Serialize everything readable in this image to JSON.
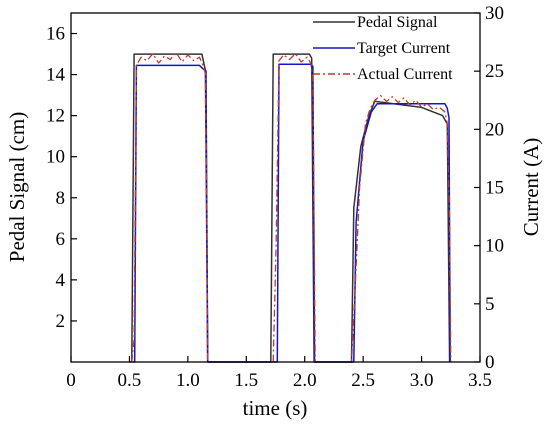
{
  "chart_data": {
    "type": "line",
    "xlabel": "time (s)",
    "ylabel": "Pedal Signal (cm)",
    "y2label": "Current (A)",
    "xlim": [
      0,
      3.5
    ],
    "ylim": [
      0,
      17
    ],
    "y2lim": [
      0,
      30
    ],
    "x_ticks": [
      "0",
      "0.5",
      "1.0",
      "1.5",
      "2.0",
      "2.5",
      "3.0",
      "3.5"
    ],
    "y_ticks": [
      "2",
      "4",
      "6",
      "8",
      "10",
      "12",
      "14",
      "16"
    ],
    "y2_ticks": [
      "0",
      "5",
      "10",
      "15",
      "20",
      "25",
      "30"
    ],
    "grid": false,
    "legend_position": "top-right",
    "series": [
      {
        "name": "Pedal Signal",
        "axis": "left",
        "color": "#333333",
        "style": "solid",
        "x": [
          0.5,
          0.52,
          0.54,
          1.12,
          1.15,
          1.17,
          1.69,
          1.71,
          1.73,
          2.04,
          2.06,
          2.08,
          2.4,
          2.42,
          2.48,
          2.55,
          2.6,
          3.0,
          3.18,
          3.2,
          3.22,
          3.24
        ],
        "y": [
          0,
          0,
          15.0,
          15.0,
          14.2,
          0,
          0,
          0,
          15.0,
          15.0,
          14.8,
          0,
          0,
          7.5,
          10.5,
          12.0,
          12.7,
          12.4,
          12.0,
          11.8,
          11.6,
          0
        ]
      },
      {
        "name": "Target Current",
        "axis": "right",
        "color": "#1515c8",
        "style": "solid",
        "x": [
          0.53,
          0.545,
          0.56,
          1.1,
          1.13,
          1.155,
          1.17,
          1.75,
          1.765,
          1.78,
          2.05,
          2.07,
          2.085,
          2.42,
          2.44,
          2.5,
          2.57,
          2.62,
          3.2,
          3.22,
          3.235,
          3.245
        ],
        "y": [
          0,
          0,
          25.5,
          25.5,
          25.2,
          25.0,
          0,
          0,
          0,
          25.6,
          25.6,
          25.4,
          0,
          0,
          12.0,
          19.0,
          21.5,
          22.2,
          22.2,
          21.8,
          21.0,
          0
        ]
      },
      {
        "name": "Actual Current",
        "axis": "right",
        "color": "#c0392b",
        "style": "dash-dot",
        "x": [
          0.52,
          0.54,
          0.56,
          0.6,
          0.65,
          0.7,
          0.75,
          0.8,
          0.85,
          0.9,
          0.95,
          1.0,
          1.05,
          1.1,
          1.13,
          1.15,
          1.16,
          1.17,
          1.73,
          1.755,
          1.78,
          1.82,
          1.87,
          1.92,
          1.97,
          2.02,
          2.05,
          2.07,
          2.09,
          2.4,
          2.43,
          2.47,
          2.52,
          2.56,
          2.6,
          2.65,
          2.7,
          2.75,
          2.8,
          2.85,
          2.9,
          2.95,
          3.0,
          3.05,
          3.1,
          3.15,
          3.2,
          3.22,
          3.24,
          3.25
        ],
        "y": [
          0,
          2.0,
          25.5,
          26.2,
          25.9,
          26.5,
          25.7,
          26.3,
          26.0,
          26.6,
          25.8,
          26.4,
          25.9,
          26.2,
          25.5,
          24.8,
          15.0,
          0,
          0,
          10.0,
          25.9,
          26.4,
          26.0,
          26.5,
          25.8,
          26.2,
          25.7,
          24.5,
          0,
          0,
          6.0,
          15.0,
          20.5,
          21.8,
          22.5,
          22.9,
          22.4,
          22.8,
          22.3,
          22.7,
          22.1,
          22.5,
          21.9,
          22.2,
          21.7,
          21.9,
          21.5,
          20.5,
          12.0,
          0
        ]
      }
    ]
  }
}
